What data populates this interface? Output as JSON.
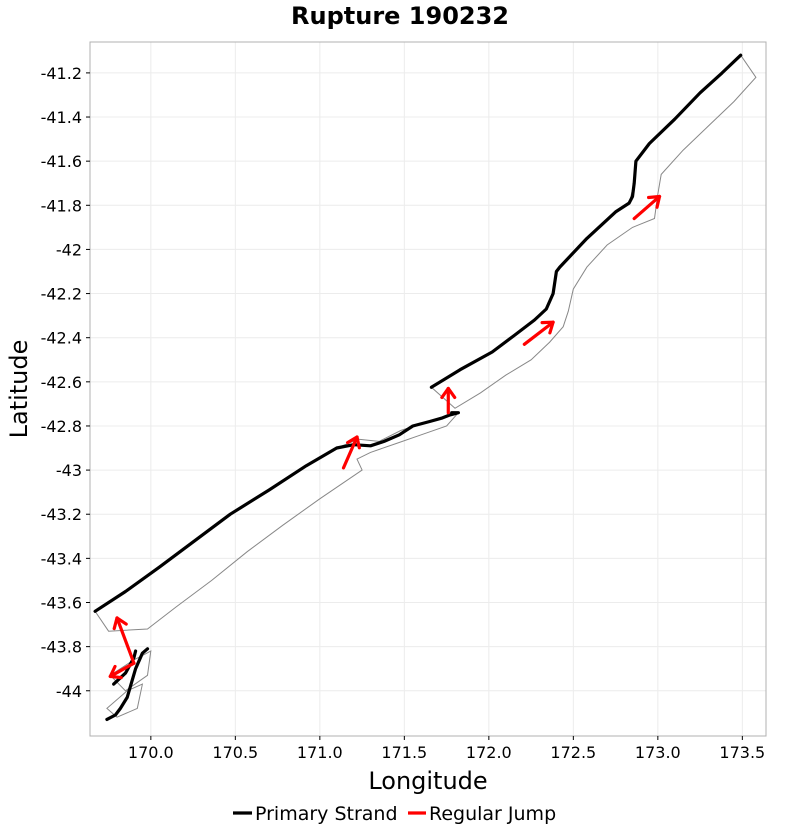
{
  "chart_data": {
    "type": "line",
    "title": "Rupture 190232",
    "xlabel": "Longitude",
    "ylabel": "Latitude",
    "xlim": [
      169.64,
      173.64
    ],
    "ylim": [
      -44.205,
      -41.06
    ],
    "xticks": [
      170.0,
      170.5,
      171.0,
      171.5,
      172.0,
      172.5,
      173.0,
      173.5
    ],
    "xtick_labels": [
      "170.0",
      "170.5",
      "171.0",
      "171.5",
      "172.0",
      "172.5",
      "173.0",
      "173.5"
    ],
    "yticks": [
      -41.2,
      -41.4,
      -41.6,
      -41.8,
      -42.0,
      -42.2,
      -42.4,
      -42.6,
      -42.8,
      -43.0,
      -43.2,
      -43.4,
      -43.6,
      -43.8,
      -44.0
    ],
    "ytick_labels": [
      "-41.2",
      "-41.4",
      "-41.6",
      "-41.8",
      "-42",
      "-42.2",
      "-42.4",
      "-42.6",
      "-42.8",
      "-43",
      "-43.2",
      "-43.4",
      "-43.6",
      "-43.8",
      "-44"
    ],
    "grid": true,
    "legend": {
      "position": "bottom",
      "entries": [
        {
          "label": "Primary Strand",
          "color": "#000000"
        },
        {
          "label": "Regular Jump",
          "color": "#ff0000"
        }
      ]
    },
    "series": [
      {
        "name": "Primary Strand",
        "color": "#000000",
        "segments": [
          [
            [
              169.67,
              -43.64
            ],
            [
              169.85,
              -43.55
            ],
            [
              170.05,
              -43.44
            ],
            [
              170.26,
              -43.32
            ],
            [
              170.47,
              -43.2
            ],
            [
              170.7,
              -43.09
            ],
            [
              170.92,
              -42.98
            ],
            [
              171.1,
              -42.9
            ],
            [
              171.2,
              -42.885
            ],
            [
              171.3,
              -42.89
            ],
            [
              171.38,
              -42.87
            ],
            [
              171.47,
              -42.84
            ],
            [
              171.55,
              -42.8
            ],
            [
              171.65,
              -42.78
            ],
            [
              171.72,
              -42.765
            ],
            [
              171.77,
              -42.75
            ],
            [
              171.82,
              -42.74
            ],
            [
              171.78,
              -42.74
            ]
          ],
          [
            [
              171.66,
              -42.625
            ],
            [
              171.83,
              -42.545
            ],
            [
              172.02,
              -42.465
            ],
            [
              172.15,
              -42.39
            ],
            [
              172.27,
              -42.32
            ],
            [
              172.34,
              -42.27
            ],
            [
              172.38,
              -42.2
            ],
            [
              172.4,
              -42.1
            ],
            [
              172.42,
              -42.08
            ],
            [
              172.58,
              -41.95
            ],
            [
              172.75,
              -41.83
            ],
            [
              172.83,
              -41.79
            ],
            [
              172.85,
              -41.76
            ],
            [
              172.86,
              -41.7
            ],
            [
              172.87,
              -41.6
            ],
            [
              172.95,
              -41.52
            ],
            [
              173.1,
              -41.41
            ],
            [
              173.25,
              -41.29
            ],
            [
              173.38,
              -41.2
            ],
            [
              173.49,
              -41.12
            ]
          ],
          [
            [
              169.78,
              -43.97
            ],
            [
              169.85,
              -43.92
            ],
            [
              169.9,
              -43.85
            ],
            [
              169.91,
              -43.82
            ]
          ],
          [
            [
              169.74,
              -44.13
            ],
            [
              169.79,
              -44.11
            ],
            [
              169.82,
              -44.08
            ],
            [
              169.86,
              -44.03
            ],
            [
              169.91,
              -43.9
            ],
            [
              169.95,
              -43.83
            ],
            [
              169.98,
              -43.81
            ]
          ]
        ]
      },
      {
        "name": "Regular Jump",
        "color": "#ff0000",
        "segments": [
          [
            [
              169.9,
              -43.875
            ],
            [
              169.8,
              -43.67
            ]
          ],
          [
            [
              169.9,
              -43.875
            ],
            [
              169.76,
              -43.935
            ]
          ],
          [
            [
              171.14,
              -42.99
            ],
            [
              171.22,
              -42.85
            ]
          ],
          [
            [
              171.76,
              -42.74
            ],
            [
              171.76,
              -42.63
            ]
          ],
          [
            [
              172.21,
              -42.43
            ],
            [
              172.38,
              -42.33
            ]
          ],
          [
            [
              172.86,
              -41.86
            ],
            [
              173.01,
              -41.76
            ]
          ]
        ]
      }
    ],
    "fault_sections": {
      "name": "",
      "color": "#888888",
      "outlines": [
        [
          [
            169.67,
            -43.64
          ],
          [
            169.85,
            -43.55
          ],
          [
            170.05,
            -43.44
          ],
          [
            170.26,
            -43.32
          ],
          [
            170.47,
            -43.2
          ],
          [
            170.7,
            -43.09
          ],
          [
            170.92,
            -42.98
          ],
          [
            171.1,
            -42.9
          ],
          [
            171.23,
            -42.86
          ],
          [
            171.35,
            -42.87
          ],
          [
            171.48,
            -42.82
          ],
          [
            171.6,
            -42.79
          ],
          [
            171.7,
            -42.77
          ],
          [
            171.82,
            -42.74
          ],
          [
            171.75,
            -42.8
          ],
          [
            171.6,
            -42.84
          ],
          [
            171.45,
            -42.88
          ],
          [
            171.3,
            -42.92
          ],
          [
            171.22,
            -42.95
          ],
          [
            171.25,
            -43.0
          ],
          [
            171.0,
            -43.13
          ],
          [
            170.78,
            -43.25
          ],
          [
            170.57,
            -43.37
          ],
          [
            170.36,
            -43.5
          ],
          [
            170.15,
            -43.62
          ],
          [
            169.98,
            -43.72
          ],
          [
            169.75,
            -43.73
          ]
        ],
        [
          [
            171.66,
            -42.625
          ],
          [
            171.83,
            -42.545
          ],
          [
            172.02,
            -42.465
          ],
          [
            172.15,
            -42.39
          ],
          [
            172.27,
            -42.32
          ],
          [
            172.34,
            -42.27
          ],
          [
            172.38,
            -42.2
          ],
          [
            172.4,
            -42.1
          ],
          [
            172.42,
            -42.08
          ],
          [
            172.58,
            -41.95
          ],
          [
            172.75,
            -41.83
          ],
          [
            172.83,
            -41.79
          ],
          [
            172.86,
            -41.7
          ],
          [
            172.87,
            -41.6
          ],
          [
            172.95,
            -41.52
          ],
          [
            173.1,
            -41.41
          ],
          [
            173.25,
            -41.29
          ],
          [
            173.38,
            -41.2
          ],
          [
            173.49,
            -41.12
          ],
          [
            173.58,
            -41.22
          ],
          [
            173.45,
            -41.33
          ],
          [
            173.3,
            -41.44
          ],
          [
            173.15,
            -41.55
          ],
          [
            173.02,
            -41.66
          ],
          [
            173.0,
            -41.75
          ],
          [
            172.98,
            -41.86
          ],
          [
            172.85,
            -41.9
          ],
          [
            172.7,
            -41.98
          ],
          [
            172.58,
            -42.08
          ],
          [
            172.5,
            -42.18
          ],
          [
            172.47,
            -42.28
          ],
          [
            172.44,
            -42.35
          ],
          [
            172.36,
            -42.42
          ],
          [
            172.25,
            -42.5
          ],
          [
            172.1,
            -42.57
          ],
          [
            171.95,
            -42.65
          ],
          [
            171.8,
            -42.72
          ],
          [
            171.66,
            -42.625
          ]
        ],
        [
          [
            169.76,
            -43.93
          ],
          [
            169.9,
            -43.86
          ],
          [
            170.0,
            -43.82
          ],
          [
            169.98,
            -43.93
          ],
          [
            169.85,
            -44.0
          ],
          [
            169.76,
            -43.93
          ]
        ],
        [
          [
            169.74,
            -44.08
          ],
          [
            169.86,
            -44.0
          ],
          [
            169.95,
            -43.97
          ],
          [
            169.92,
            -44.08
          ],
          [
            169.8,
            -44.12
          ],
          [
            169.74,
            -44.08
          ]
        ]
      ]
    }
  }
}
